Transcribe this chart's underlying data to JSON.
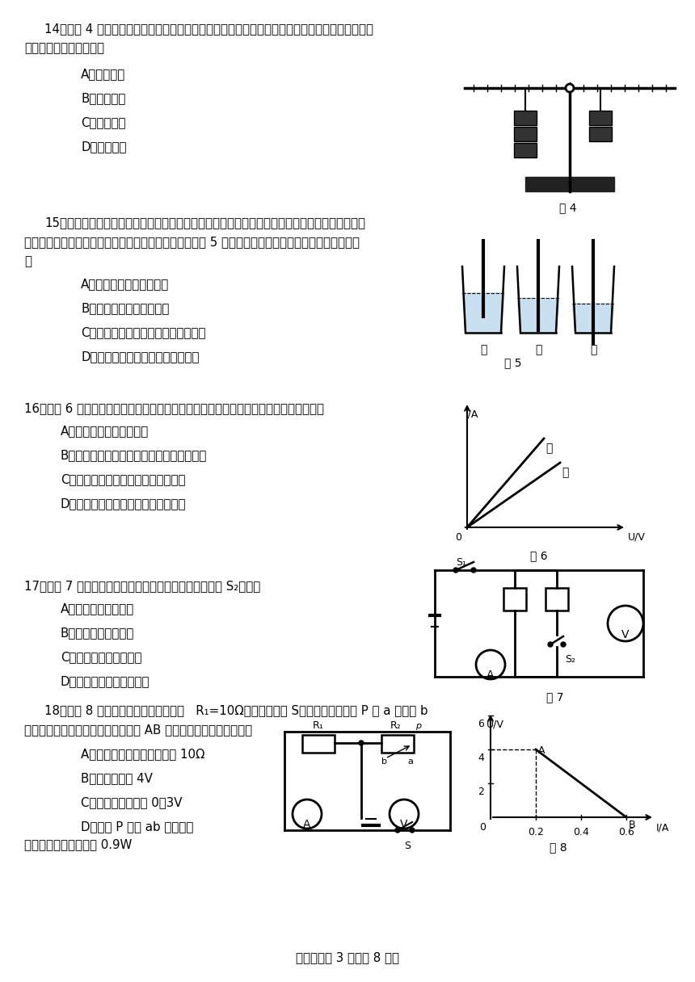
{
  "bg": "#ffffff",
  "fg": "#000000",
  "fs": 10.8,
  "footer": "物理试题第 3 页（共 8 页）",
  "q14_stem1": "14．如图 4 所示，在调节平衡后的杠杆两侧，分别挂上相同规格的钩码，杠杆处于平衡状态。如果",
  "q14_stem2": "两侧各去掉一个钩码，则",
  "q14_opts": [
    "A．左端下降",
    "B．右端下降",
    "C．仍然平衡",
    "D．无法判断"
  ],
  "q15_stem1": "15．将适量的橡皮泥黏在铅笔的一端（能使铅笔竖直浮在液体中），这就制成了一个很有用的土仪",
  "q15_stem2": "器，将它分别放在盛有不同液体杯中，静止时的情景如图 5 所示。对于这个土仪器，下列说法不正确的",
  "q15_stem3": "是",
  "q15_opts": [
    "A．运用了二力平衡的知识",
    "B．运用了物体的漂浮条件",
    "C．用它可以比较不同液体密度的大小",
    "D．用它测出乙杯中的液体密度最小"
  ],
  "q16_stem": "16．如图 6 所示是甲、乙两电阻的电流与电压的关系图像，以下的几种分析中，正确的是",
  "q16_opts": [
    "A．甲的电阻大于乙的电阻",
    "B．通过甲的电流跟加在它两端的电压成反比",
    "C．当甲、乙并联时，甲的电功率较大",
    "D．当甲、乙串联时，甲的电功率较大"
  ],
  "q17_stem": "17．如图 7 所示的电路中，电源电压保持不变，闭合开关 S₂后，则",
  "q17_opts": [
    "A．电压表的示数变大",
    "B．电流表的示数变大",
    "C．电路中的总电阻变大",
    "D．电路消耗的总功率变小"
  ],
  "q18_stem1": "18．如图 8 所示，电源电压保持不变，   R₁=10Ω，当闭合开关 S，滑动变阻器滑片 P 从 a 端移到 b",
  "q18_stem2": "端，两电表示数变化关系用图中线段 AB 表示。则下面说法正确的是",
  "q18_opts": [
    "A．滑动变阻器的最大阻值是 10Ω",
    "B．电源电压是 4V",
    "C．电压表的接线是 0－3V",
    "D．滑片 P 滑到 ab 中点时，"
  ],
  "q18_opt_d2": "滑动变阻器的电功率是 0.9W"
}
